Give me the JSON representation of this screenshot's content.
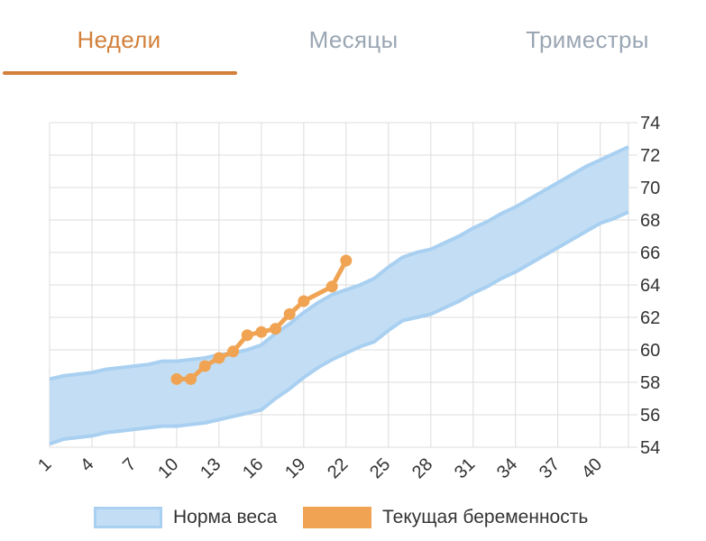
{
  "tabs": [
    {
      "label": "Недели",
      "active": true
    },
    {
      "label": "Месяцы",
      "active": false
    },
    {
      "label": "Триместры",
      "active": false
    }
  ],
  "colors": {
    "tab_active": "#d2803a",
    "tab_inactive": "#9aa6b3",
    "underline": "#d2803a",
    "band_fill": "#c3def4",
    "band_line": "#a9d0f1",
    "series_line": "#f0a453",
    "grid": "#dcdcdc",
    "axis_text": "#333333"
  },
  "chart_data": {
    "type": "area",
    "x_ticks": [
      "1",
      "4",
      "7",
      "10",
      "13",
      "16",
      "19",
      "22",
      "25",
      "28",
      "31",
      "34",
      "37",
      "40"
    ],
    "y_ticks": [
      "54",
      "56",
      "58",
      "60",
      "62",
      "64",
      "66",
      "68",
      "70",
      "72",
      "74"
    ],
    "xlim": [
      1,
      42
    ],
    "ylim": [
      54,
      74
    ],
    "y_axis_position": "right",
    "grid": true,
    "legend_position": "bottom",
    "series": [
      {
        "name": "Норма веса",
        "kind": "band",
        "x": [
          1,
          2,
          3,
          4,
          5,
          6,
          7,
          8,
          9,
          10,
          11,
          12,
          13,
          14,
          15,
          16,
          17,
          18,
          19,
          20,
          21,
          22,
          23,
          24,
          25,
          26,
          27,
          28,
          29,
          30,
          31,
          32,
          33,
          34,
          35,
          36,
          37,
          38,
          39,
          40,
          41,
          42
        ],
        "lower": [
          54.2,
          54.5,
          54.6,
          54.7,
          54.9,
          55.0,
          55.1,
          55.2,
          55.3,
          55.3,
          55.4,
          55.5,
          55.7,
          55.9,
          56.1,
          56.3,
          57.0,
          57.6,
          58.3,
          58.9,
          59.4,
          59.8,
          60.2,
          60.5,
          61.2,
          61.8,
          62.0,
          62.2,
          62.6,
          63.0,
          63.5,
          63.9,
          64.4,
          64.8,
          65.3,
          65.8,
          66.3,
          66.8,
          67.3,
          67.8,
          68.1,
          68.5
        ],
        "upper": [
          58.2,
          58.4,
          58.5,
          58.6,
          58.8,
          58.9,
          59.0,
          59.1,
          59.3,
          59.3,
          59.4,
          59.5,
          59.7,
          59.8,
          60.0,
          60.3,
          61.0,
          61.6,
          62.3,
          62.9,
          63.4,
          63.7,
          64.0,
          64.4,
          65.1,
          65.7,
          66.0,
          66.2,
          66.6,
          67.0,
          67.5,
          67.9,
          68.4,
          68.8,
          69.3,
          69.8,
          70.3,
          70.8,
          71.3,
          71.7,
          72.1,
          72.5
        ]
      },
      {
        "name": "Текущая беременность",
        "kind": "line",
        "x": [
          10,
          11,
          12,
          13,
          14,
          15,
          16,
          17,
          18,
          19,
          21,
          22
        ],
        "y": [
          58.2,
          58.2,
          59.0,
          59.5,
          59.9,
          60.9,
          61.1,
          61.3,
          62.2,
          63.0,
          63.9,
          65.5
        ]
      }
    ]
  }
}
